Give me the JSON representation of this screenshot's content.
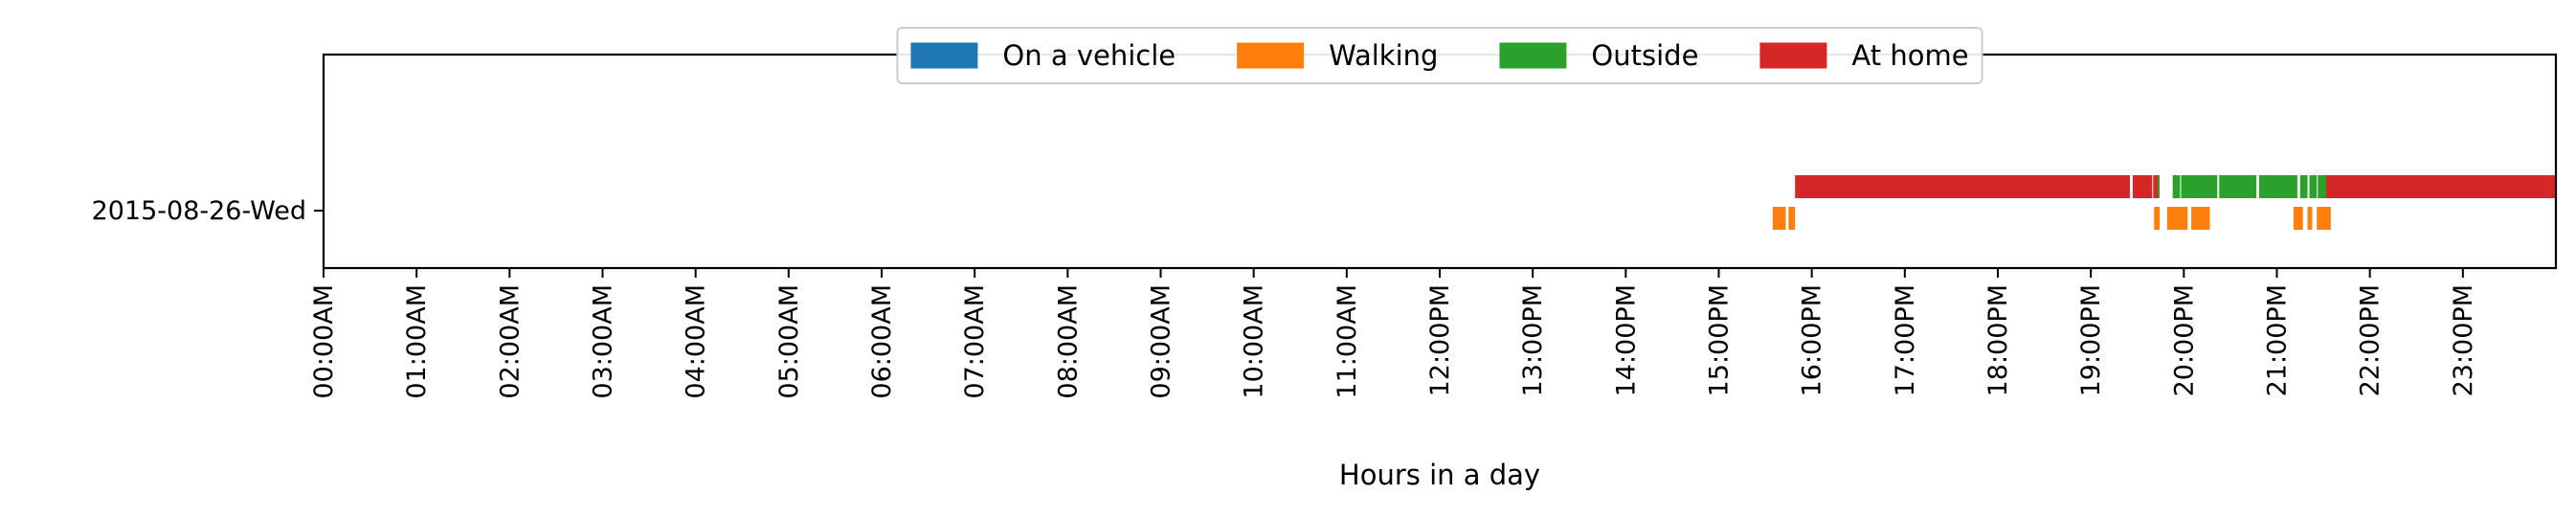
{
  "chart_data": {
    "type": "timeline",
    "xlabel": "Hours in a day",
    "xlim": [
      0,
      24
    ],
    "x_ticks": [
      "00:00AM",
      "01:00AM",
      "02:00AM",
      "03:00AM",
      "04:00AM",
      "05:00AM",
      "06:00AM",
      "07:00AM",
      "08:00AM",
      "09:00AM",
      "10:00AM",
      "11:00AM",
      "12:00PM",
      "13:00PM",
      "14:00PM",
      "15:00PM",
      "16:00PM",
      "17:00PM",
      "18:00PM",
      "19:00PM",
      "20:00PM",
      "21:00PM",
      "22:00PM",
      "23:00PM"
    ],
    "categories": [
      "2015-08-26-Wed"
    ],
    "legend_position": "top-center",
    "series": [
      {
        "name": "On a vehicle",
        "color": "#1f77b4",
        "lane": "upper",
        "intervals": []
      },
      {
        "name": "Walking",
        "color": "#ff7f0e",
        "lane": "lower",
        "intervals": [
          [
            15.58,
            15.72
          ],
          [
            15.75,
            15.82
          ],
          [
            19.68,
            19.74
          ],
          [
            19.82,
            20.04
          ],
          [
            20.08,
            20.28
          ],
          [
            21.18,
            21.28
          ],
          [
            21.33,
            21.38
          ],
          [
            21.43,
            21.58
          ]
        ]
      },
      {
        "name": "Outside",
        "color": "#2ca02c",
        "lane": "upper",
        "intervals": [
          [
            19.68,
            19.74
          ],
          [
            19.88,
            19.96
          ],
          [
            19.97,
            20.36
          ],
          [
            20.38,
            20.78
          ],
          [
            20.81,
            21.22
          ],
          [
            21.25,
            21.33
          ],
          [
            21.35,
            21.43
          ],
          [
            21.44,
            21.56
          ]
        ]
      },
      {
        "name": "At home",
        "color": "#d62728",
        "lane": "upper",
        "intervals": [
          [
            15.82,
            19.42
          ],
          [
            19.45,
            19.66
          ],
          [
            19.67,
            19.72
          ],
          [
            21.53,
            24.0
          ]
        ]
      }
    ]
  }
}
